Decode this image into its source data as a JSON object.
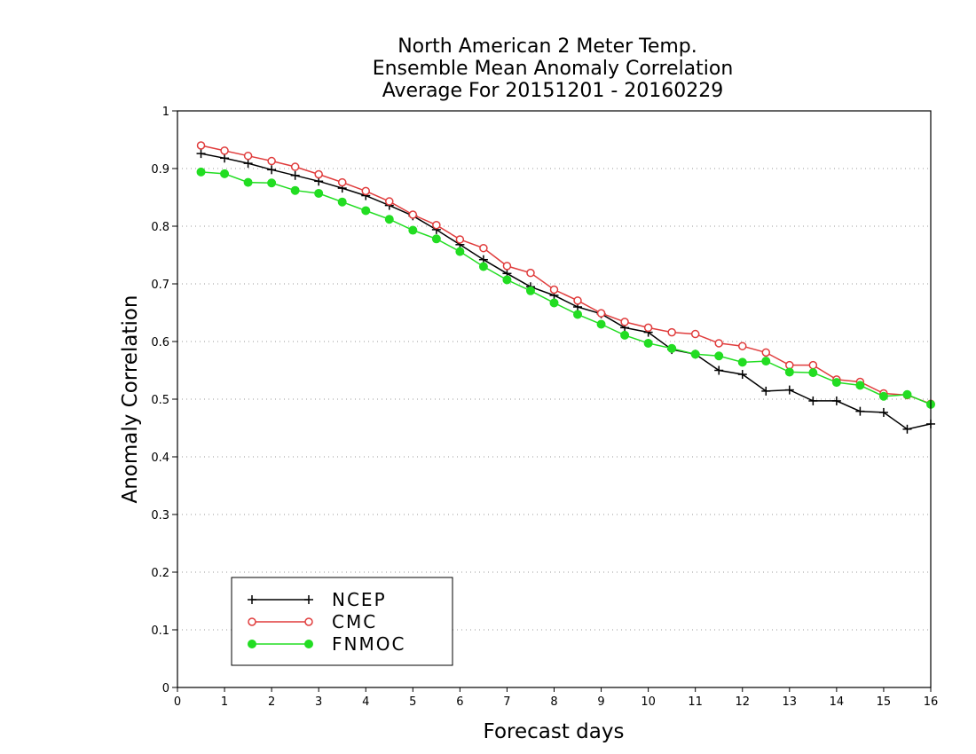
{
  "chart_data": {
    "type": "line",
    "title": [
      "North American 2 Meter Temp.",
      "Ensemble Mean Anomaly Correlation",
      "Average For 20151201 - 20160229"
    ],
    "xlabel": "Forecast days",
    "ylabel": "Anomaly Correlation",
    "xlim": [
      0,
      16
    ],
    "ylim": [
      0,
      1
    ],
    "x_ticks": [
      "0",
      "1",
      "2",
      "3",
      "4",
      "5",
      "6",
      "7",
      "8",
      "9",
      "10",
      "11",
      "12",
      "13",
      "14",
      "15",
      "16"
    ],
    "y_ticks": [
      "0",
      "0.1",
      "0.2",
      "0.3",
      "0.4",
      "0.5",
      "0.6",
      "0.7",
      "0.8",
      "0.9",
      "1"
    ],
    "grid": "horizontal dotted",
    "legend_position": "bottom-left",
    "x": [
      0.5,
      1,
      1.5,
      2,
      2.5,
      3,
      3.5,
      4,
      4.5,
      5,
      5.5,
      6,
      6.5,
      7,
      7.5,
      8,
      8.5,
      9,
      9.5,
      10,
      10.5,
      11,
      11.5,
      12,
      12.5,
      13,
      13.5,
      14,
      14.5,
      15,
      15.5,
      16
    ],
    "series": [
      {
        "name": "NCEP",
        "color": "#000000",
        "marker": "plus",
        "values": [
          0.926,
          0.918,
          0.909,
          0.898,
          0.888,
          0.878,
          0.866,
          0.853,
          0.836,
          0.818,
          0.794,
          0.768,
          0.742,
          0.718,
          0.695,
          0.68,
          0.66,
          0.648,
          0.624,
          0.616,
          0.586,
          0.578,
          0.55,
          0.543,
          0.514,
          0.516,
          0.497,
          0.497,
          0.479,
          0.477,
          0.448,
          0.457
        ]
      },
      {
        "name": "CMC",
        "color": "#e03c3c",
        "marker": "open-circle",
        "values": [
          0.94,
          0.931,
          0.922,
          0.913,
          0.903,
          0.89,
          0.876,
          0.861,
          0.843,
          0.82,
          0.802,
          0.777,
          0.762,
          0.731,
          0.719,
          0.69,
          0.671,
          0.649,
          0.634,
          0.624,
          0.616,
          0.613,
          0.597,
          0.592,
          0.581,
          0.559,
          0.559,
          0.534,
          0.53,
          0.51,
          0.507,
          0.492
        ]
      },
      {
        "name": "FNMOC",
        "color": "#22dd22",
        "marker": "filled-circle",
        "values": [
          0.894,
          0.891,
          0.876,
          0.875,
          0.862,
          0.857,
          0.842,
          0.827,
          0.812,
          0.793,
          0.778,
          0.756,
          0.73,
          0.707,
          0.688,
          0.667,
          0.647,
          0.63,
          0.611,
          0.597,
          0.588,
          0.578,
          0.575,
          0.564,
          0.566,
          0.547,
          0.546,
          0.529,
          0.524,
          0.505,
          0.508,
          0.491
        ]
      }
    ]
  }
}
